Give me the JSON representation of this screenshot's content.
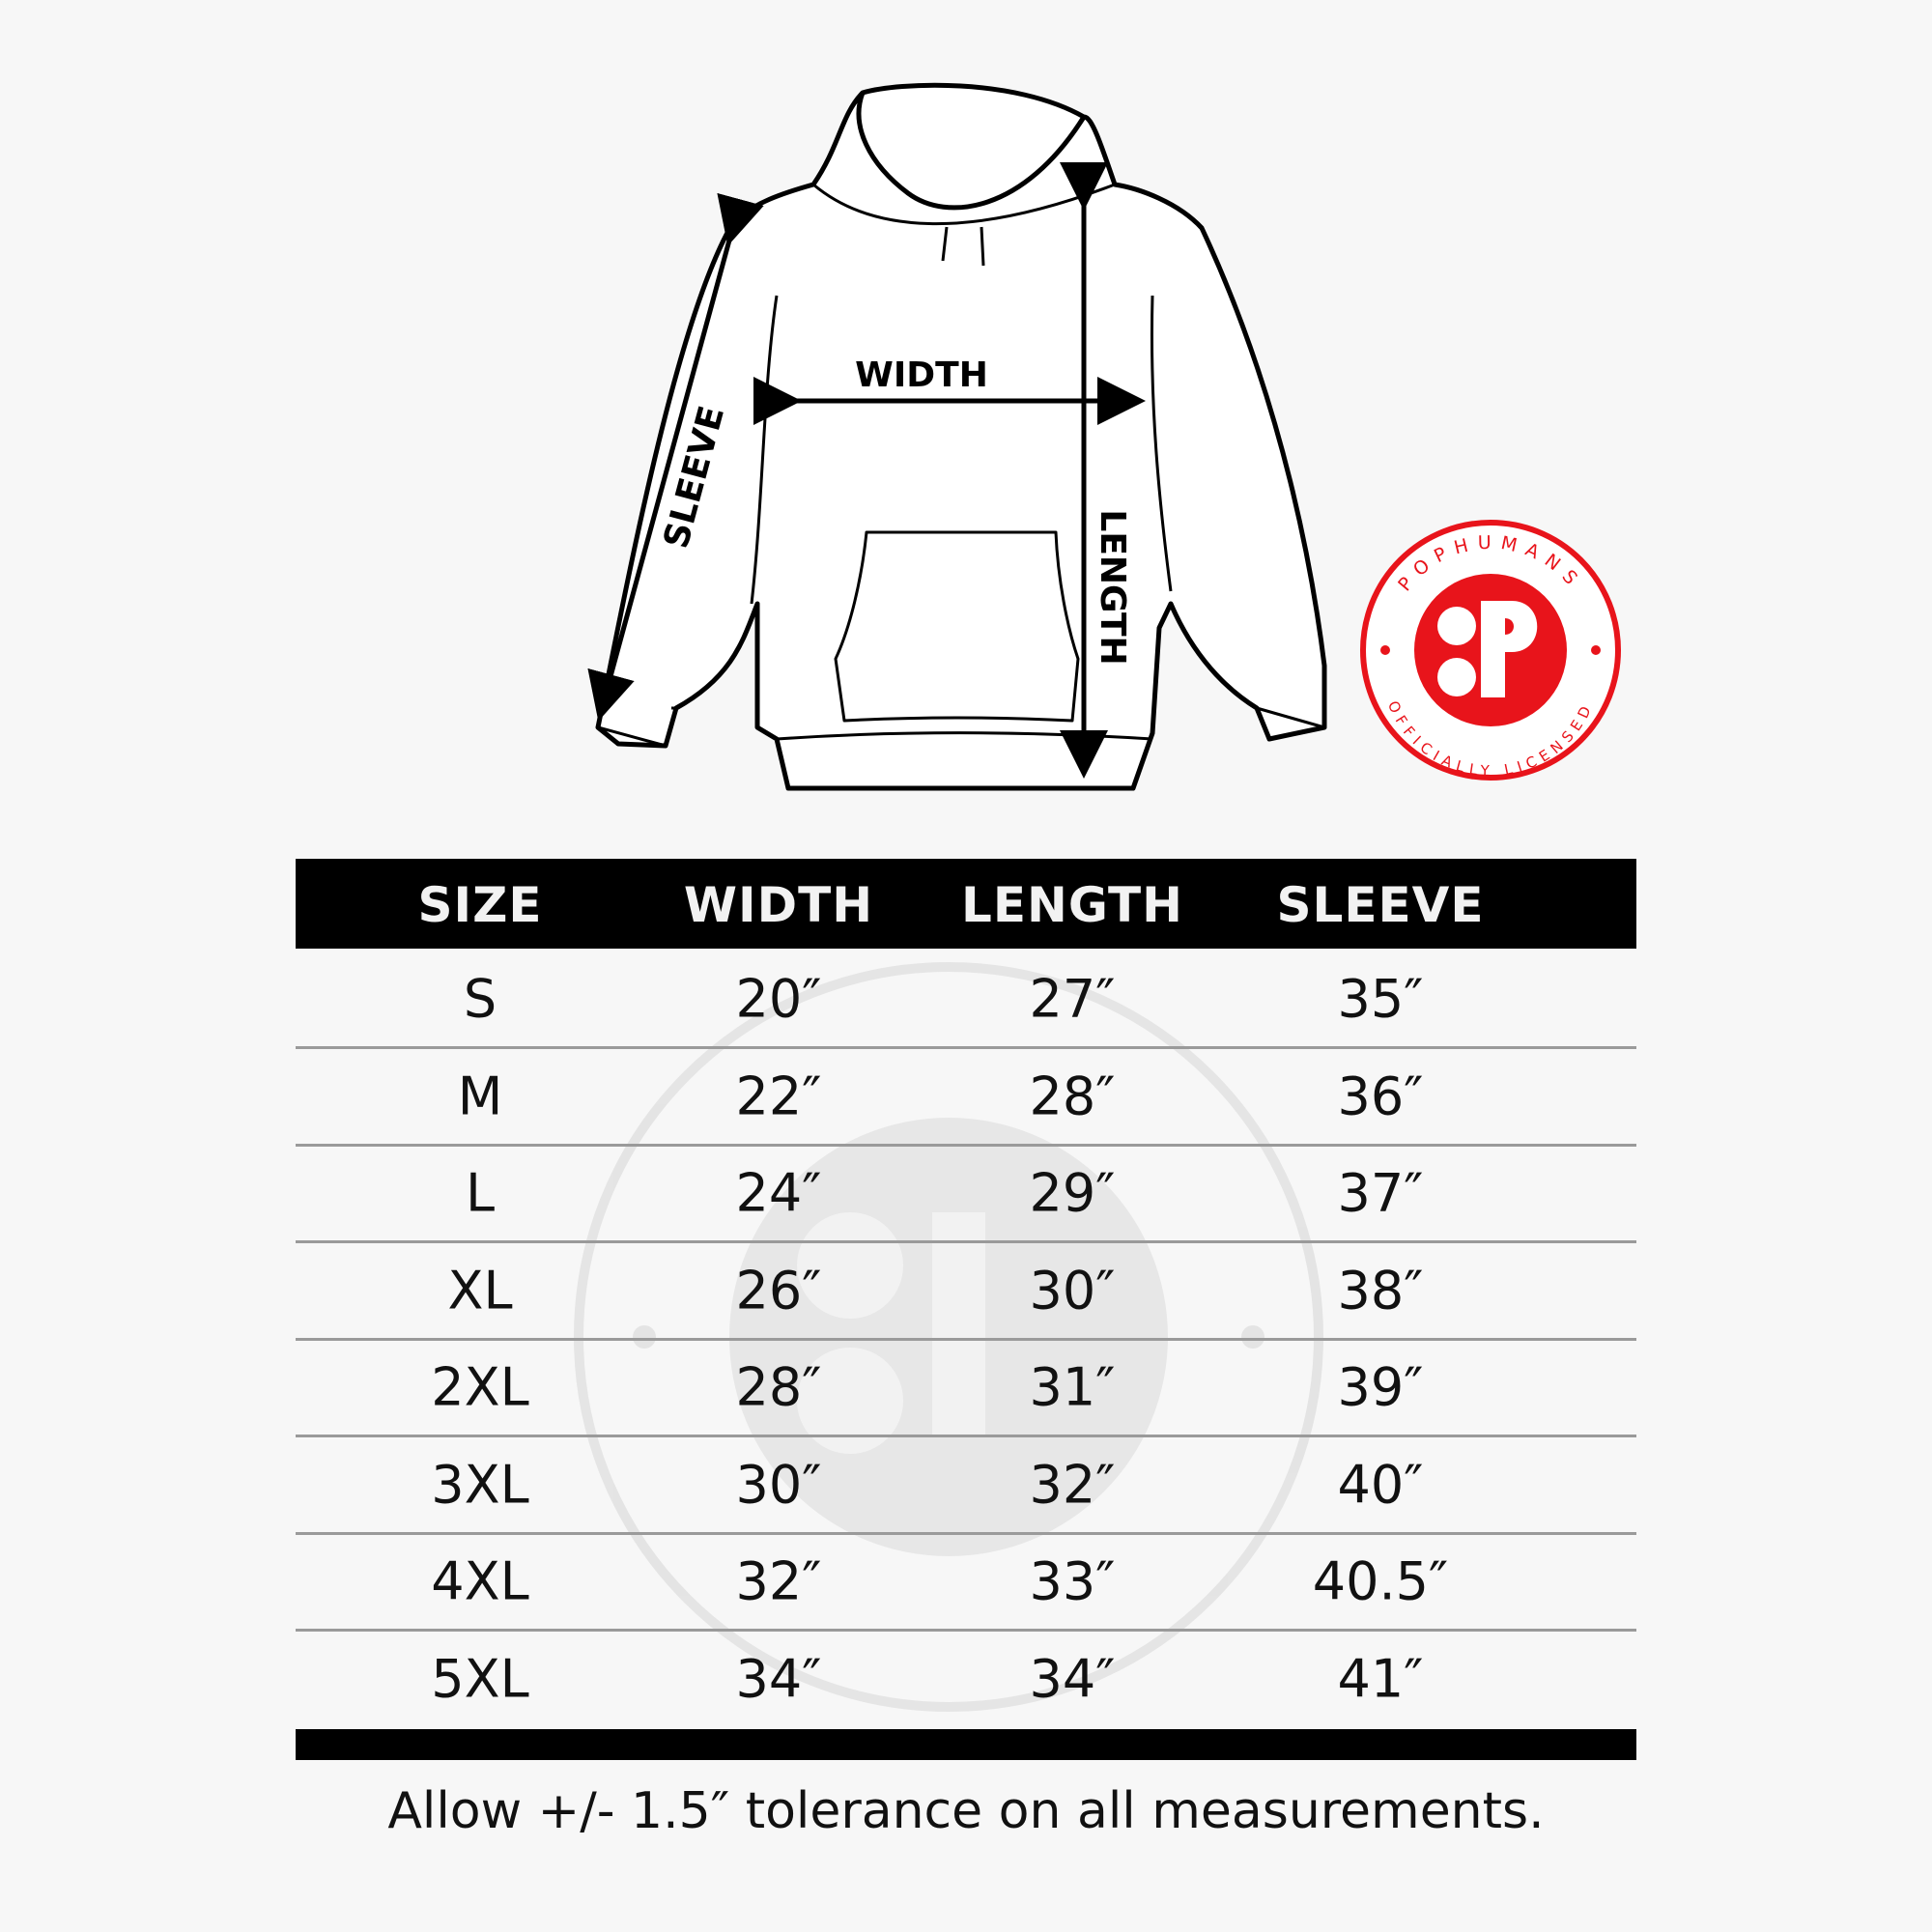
{
  "diagram": {
    "width_label": "WIDTH",
    "length_label": "LENGTH",
    "sleeve_label": "SLEEVE"
  },
  "logo": {
    "top_text": "POPHUMANS",
    "bottom_text": "OFFICIALLY LICENSED",
    "color": "#e8141b"
  },
  "table": {
    "headers": [
      "SIZE",
      "WIDTH",
      "LENGTH",
      "SLEEVE"
    ],
    "rows": [
      [
        "S",
        "20″",
        "27″",
        "35″"
      ],
      [
        "M",
        "22″",
        "28″",
        "36″"
      ],
      [
        "L",
        "24″",
        "29″",
        "37″"
      ],
      [
        "XL",
        "26″",
        "30″",
        "38″"
      ],
      [
        "2XL",
        "28″",
        "31″",
        "39″"
      ],
      [
        "3XL",
        "30″",
        "32″",
        "40″"
      ],
      [
        "4XL",
        "32″",
        "33″",
        "40.5″"
      ],
      [
        "5XL",
        "34″",
        "34″",
        "41″"
      ]
    ]
  },
  "footer": "Allow +/- 1.5″ tolerance on all measurements."
}
